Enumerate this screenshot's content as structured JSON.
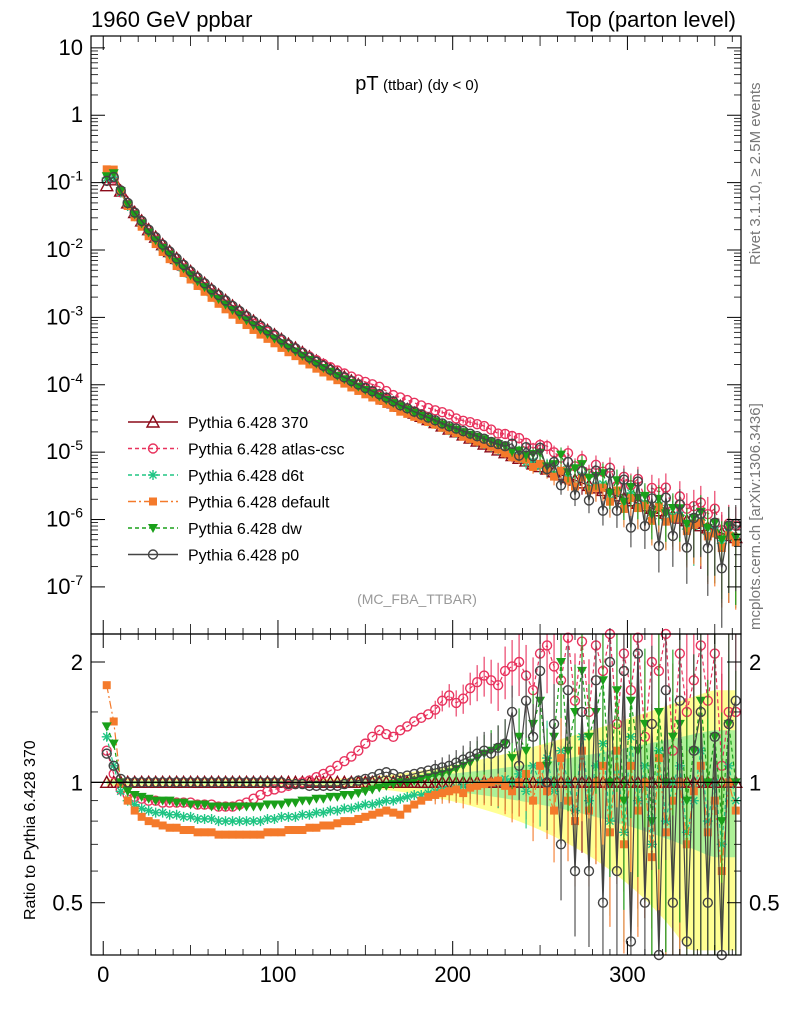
{
  "header": {
    "left": "1960 GeV ppbar",
    "right": "Top (parton level)"
  },
  "side_labels": {
    "rivet": "Rivet 3.1.10, ≥ 2.5M events",
    "mcplots": "mcplots.cern.ch [arXiv:1306.3436]"
  },
  "chart_data": [
    {
      "type": "line",
      "panel": "main",
      "title_main": "pT",
      "title_sub": "(ttbar)",
      "title_cond": "(dy < 0)",
      "analysis_id": "(MC_FBA_TTBAR)",
      "yscale": "log",
      "ylim": [
        2e-08,
        15
      ],
      "xlim": [
        -7,
        365
      ],
      "y_tick_labels": [
        "10",
        "1",
        "10^-1",
        "10^-2",
        "10^-3",
        "10^-4",
        "10^-5",
        "10^-6",
        "10^-7"
      ],
      "x": [
        2,
        6,
        10,
        14,
        18,
        22,
        26,
        30,
        34,
        38,
        42,
        46,
        50,
        54,
        58,
        62,
        66,
        70,
        74,
        78,
        82,
        86,
        90,
        94,
        98,
        102,
        106,
        110,
        114,
        118,
        122,
        126,
        130,
        134,
        138,
        142,
        146,
        150,
        154,
        158,
        162,
        166,
        170,
        174,
        178,
        182,
        186,
        190,
        194,
        198,
        202,
        206,
        210,
        214,
        218,
        222,
        226,
        230,
        234,
        238,
        242,
        246,
        250,
        254,
        258,
        262,
        266,
        270,
        274,
        278,
        282,
        286,
        290,
        294,
        298,
        302,
        306,
        310,
        314,
        318,
        322,
        326,
        330,
        334,
        338,
        342,
        346,
        350,
        354,
        358,
        362
      ],
      "reference": [
        0.09,
        0.11,
        0.075,
        0.05,
        0.036,
        0.027,
        0.02,
        0.0155,
        0.012,
        0.0095,
        0.0075,
        0.006,
        0.0048,
        0.0039,
        0.0032,
        0.0026,
        0.00215,
        0.00178,
        0.00148,
        0.00124,
        0.00104,
        0.00088,
        0.00075,
        0.00064,
        0.00055,
        0.00047,
        0.0004,
        0.00035,
        0.0003,
        0.00026,
        0.000225,
        0.000195,
        0.00017,
        0.000148,
        0.00013,
        0.000114,
        0.0001,
        8.8e-05,
        7.8e-05,
        6.9e-05,
        6.1e-05,
        5.4e-05,
        4.8e-05,
        4.3e-05,
        3.8e-05,
        3.4e-05,
        3.05e-05,
        2.75e-05,
        2.45e-05,
        2.2e-05,
        2e-05,
        1.8e-05,
        1.62e-05,
        1.46e-05,
        1.32e-05,
        1.2e-05,
        1.08e-05,
        9.8e-06,
        8.9e-06,
        8.1e-06,
        7.4e-06,
        6.7e-06,
        6.1e-06,
        5.6e-06,
        5.1e-06,
        4.6e-06,
        4.2e-06,
        3.85e-06,
        3.5e-06,
        3.2e-06,
        2.95e-06,
        2.7e-06,
        2.45e-06,
        2.25e-06,
        2.05e-06,
        1.9e-06,
        1.74e-06,
        1.6e-06,
        1.47e-06,
        1.35e-06,
        1.24e-06,
        1.14e-06,
        1.05e-06,
        9.6e-07,
        8.8e-07,
        8.1e-07,
        7.5e-07,
        6.9e-07,
        6.3e-07,
        5.8e-07,
        5.4e-07
      ],
      "legend_location": "lower-left",
      "series": [
        {
          "name": "Pythia 6.428 370",
          "color": "#8b0a19",
          "marker": "triangle-open",
          "dash": "",
          "ratio": [
            1.0,
            1.0,
            1.0,
            1.0,
            1.0,
            1.0,
            1.0,
            1.0,
            1.0,
            1.0,
            1.0,
            1.0,
            1.0,
            1.0,
            1.0,
            1.0,
            1.0,
            1.0,
            1.0,
            1.0,
            1.0,
            1.0,
            1.0,
            1.0,
            1.0,
            1.0,
            1.0,
            1.0,
            1.0,
            1.0,
            1.0,
            1.0,
            1.0,
            1.0,
            1.0,
            1.0,
            1.0,
            1.0,
            1.0,
            1.0,
            1.0,
            1.0,
            1.0,
            1.0,
            1.0,
            1.0,
            1.0,
            1.0,
            1.0,
            1.0,
            1.0,
            1.0,
            1.0,
            1.0,
            1.0,
            1.0,
            1.0,
            1.0,
            1.0,
            1.0,
            1.0,
            1.0,
            1.0,
            1.0,
            1.0,
            1.0,
            1.0,
            1.0,
            1.0,
            1.0,
            1.0,
            1.0,
            1.0,
            1.0,
            1.0,
            1.0,
            1.0,
            1.0,
            1.0,
            1.0,
            1.0,
            1.0,
            1.0,
            1.0,
            1.0,
            1.0,
            1.0,
            1.0,
            1.0,
            1.0,
            1.0
          ]
        },
        {
          "name": "Pythia 6.428 atlas-csc",
          "color": "#e8325d",
          "marker": "circle-open",
          "dash": "4,3",
          "ratio": [
            1.2,
            1.05,
            0.96,
            0.93,
            0.92,
            0.91,
            0.9,
            0.9,
            0.89,
            0.89,
            0.89,
            0.89,
            0.89,
            0.88,
            0.88,
            0.88,
            0.87,
            0.87,
            0.87,
            0.88,
            0.89,
            0.91,
            0.93,
            0.95,
            0.96,
            0.97,
            0.98,
            0.99,
            1.0,
            1.01,
            1.03,
            1.05,
            1.07,
            1.1,
            1.13,
            1.16,
            1.2,
            1.25,
            1.3,
            1.35,
            1.32,
            1.3,
            1.35,
            1.38,
            1.42,
            1.45,
            1.48,
            1.52,
            1.6,
            1.65,
            1.58,
            1.62,
            1.72,
            1.78,
            1.85,
            1.8,
            1.75,
            1.9,
            1.95,
            2.0,
            1.85,
            1.7,
            2.1,
            2.2,
            1.95,
            1.8,
            2.3,
            1.6,
            2.25,
            1.5,
            2.2,
            1.9,
            2.4,
            1.4,
            2.1,
            1.7,
            2.3,
            1.3,
            2.0,
            1.9,
            2.4,
            1.2,
            2.1,
            1.5,
            1.8,
            2.2,
            1.6,
            2.1,
            1.1,
            1.5,
            1.5
          ]
        },
        {
          "name": "Pythia 6.428 d6t",
          "color": "#20c584",
          "marker": "star",
          "dash": "4,3",
          "ratio": [
            1.3,
            1.1,
            0.95,
            0.9,
            0.88,
            0.86,
            0.85,
            0.84,
            0.84,
            0.83,
            0.83,
            0.82,
            0.82,
            0.81,
            0.81,
            0.81,
            0.8,
            0.8,
            0.8,
            0.8,
            0.8,
            0.8,
            0.8,
            0.81,
            0.81,
            0.82,
            0.82,
            0.82,
            0.83,
            0.83,
            0.84,
            0.84,
            0.85,
            0.85,
            0.86,
            0.86,
            0.87,
            0.88,
            0.88,
            0.89,
            0.9,
            0.9,
            0.91,
            0.92,
            0.93,
            0.93,
            0.94,
            0.95,
            0.96,
            0.96,
            0.97,
            0.98,
            0.98,
            0.99,
            1.0,
            1.0,
            1.0,
            1.02,
            1.0,
            1.05,
            0.95,
            1.1,
            1.0,
            1.15,
            0.95,
            1.2,
            1.0,
            0.85,
            1.3,
            0.9,
            1.1,
            1.25,
            0.8,
            1.2,
            0.75,
            1.3,
            0.9,
            1.1,
            0.7,
            1.2,
            0.8,
            1.0,
            1.1,
            0.75,
            0.9,
            1.2,
            0.8,
            1.0,
            0.7,
            1.1,
            0.9
          ]
        },
        {
          "name": "Pythia 6.428 default",
          "color": "#f47a2b",
          "marker": "square",
          "dash": "8,3,2,3",
          "ratio": [
            1.75,
            1.42,
            1.0,
            0.9,
            0.85,
            0.82,
            0.8,
            0.79,
            0.78,
            0.77,
            0.77,
            0.76,
            0.76,
            0.75,
            0.75,
            0.75,
            0.74,
            0.74,
            0.74,
            0.74,
            0.74,
            0.74,
            0.74,
            0.75,
            0.75,
            0.75,
            0.76,
            0.76,
            0.76,
            0.77,
            0.77,
            0.78,
            0.78,
            0.79,
            0.8,
            0.8,
            0.81,
            0.82,
            0.83,
            0.84,
            0.85,
            0.84,
            0.83,
            0.86,
            0.88,
            0.9,
            0.92,
            0.93,
            0.94,
            0.95,
            0.96,
            0.94,
            0.97,
            0.98,
            0.99,
            1.0,
            1.01,
            0.98,
            0.95,
            1.0,
            1.05,
            0.9,
            1.1,
            0.95,
            0.85,
            1.15,
            0.9,
            0.8,
            1.2,
            0.85,
            1.0,
            1.1,
            0.75,
            1.2,
            0.7,
            1.1,
            0.85,
            1.0,
            0.65,
            1.15,
            0.75,
            0.9,
            1.0,
            0.7,
            0.95,
            1.1,
            0.75,
            0.9,
            0.6,
            1.0,
            0.85
          ]
        },
        {
          "name": "Pythia 6.428 dw",
          "color": "#1aa01a",
          "marker": "triangle-down",
          "dash": "4,3",
          "ratio": [
            1.38,
            1.25,
            1.0,
            0.95,
            0.93,
            0.92,
            0.91,
            0.9,
            0.9,
            0.9,
            0.89,
            0.89,
            0.88,
            0.88,
            0.88,
            0.87,
            0.87,
            0.87,
            0.87,
            0.87,
            0.87,
            0.87,
            0.87,
            0.88,
            0.88,
            0.88,
            0.89,
            0.89,
            0.9,
            0.9,
            0.91,
            0.91,
            0.92,
            0.92,
            0.93,
            0.93,
            0.94,
            0.95,
            0.96,
            0.97,
            0.98,
            0.99,
            1.0,
            1.0,
            1.01,
            1.02,
            1.03,
            1.04,
            1.05,
            1.06,
            1.08,
            1.1,
            1.12,
            1.15,
            1.18,
            1.2,
            1.22,
            1.25,
            1.15,
            1.3,
            1.2,
            1.4,
            1.6,
            1.1,
            1.3,
            2.0,
            1.2,
            1.5,
            1.9,
            1.3,
            1.5,
            1.8,
            1.0,
            1.7,
            0.9,
            1.6,
            1.2,
            1.4,
            0.8,
            1.5,
            1.0,
            1.3,
            1.4,
            0.9,
            1.2,
            1.6,
            1.0,
            1.3,
            0.8,
            1.4,
            1.0
          ]
        },
        {
          "name": "Pythia 6.428 p0",
          "color": "#444444",
          "marker": "circle-open",
          "dash": "",
          "ratio": [
            1.18,
            1.1,
            1.02,
            1.0,
            1.0,
            1.0,
            1.0,
            1.0,
            1.0,
            1.0,
            1.0,
            1.0,
            1.0,
            1.0,
            1.0,
            1.0,
            1.0,
            1.0,
            1.0,
            1.0,
            1.0,
            1.0,
            1.0,
            1.0,
            1.0,
            1.0,
            0.99,
            0.99,
            0.99,
            0.98,
            0.98,
            0.98,
            0.98,
            0.98,
            0.99,
            1.0,
            1.01,
            1.02,
            1.03,
            1.05,
            1.06,
            1.05,
            1.03,
            1.04,
            1.05,
            1.06,
            1.07,
            1.08,
            1.09,
            1.1,
            1.12,
            1.14,
            1.16,
            1.18,
            1.2,
            1.18,
            1.22,
            1.25,
            1.5,
            1.1,
            1.6,
            1.3,
            1.9,
            1.0,
            1.4,
            0.7,
            1.7,
            0.6,
            1.5,
            0.6,
            1.8,
            0.5,
            2.0,
            0.6,
            1.9,
            0.4,
            2.1,
            0.5,
            1.4,
            0.3,
            1.7,
            0.5,
            1.6,
            0.4,
            1.2,
            1.5,
            0.5,
            1.3,
            0.3,
            1.4,
            1.6
          ]
        }
      ]
    },
    {
      "type": "line",
      "panel": "ratio",
      "ylabel": "Ratio to Pythia 6.428 370",
      "ylim": [
        0.37,
        2.35
      ],
      "yscale": "log",
      "y_ticks": [
        0.5,
        1,
        2
      ],
      "y_tick_labels": [
        "0.5",
        "1",
        "2"
      ],
      "x_ticks": [
        0,
        100,
        200,
        300
      ],
      "x_tick_labels": [
        "0",
        "100",
        "200",
        "300"
      ],
      "xlim": [
        -7,
        365
      ],
      "band_colors": {
        "outer": "#ffff80",
        "inner": "#99ee99"
      }
    }
  ]
}
